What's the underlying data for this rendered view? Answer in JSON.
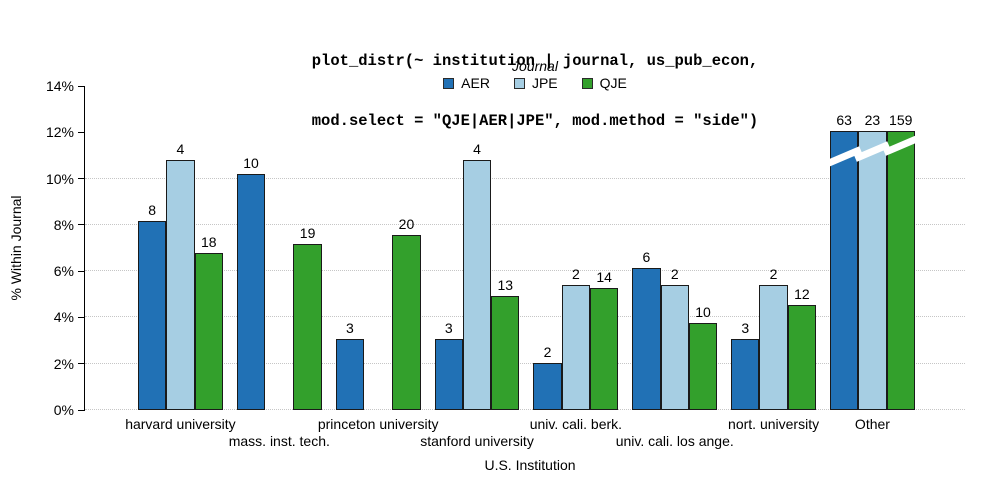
{
  "title": {
    "line1": "plot_distr(~ institution | journal, us_pub_econ,",
    "line2": "mod.select = \"QJE|AER|JPE\", mod.method = \"side\")"
  },
  "legend": {
    "title": "Journal",
    "entries": [
      {
        "label": "AER",
        "color": "#2171B5"
      },
      {
        "label": "JPE",
        "color": "#A6CEE3"
      },
      {
        "label": "QJE",
        "color": "#33A02C"
      }
    ]
  },
  "axes": {
    "y_label": "% Within Journal",
    "x_label": "U.S. Institution",
    "y_tick_labels": [
      "0%",
      "2%",
      "4%",
      "6%",
      "8%",
      "10%",
      "12%",
      "14%"
    ]
  },
  "chart_data": {
    "type": "bar",
    "title": "plot_distr(~ institution | journal, us_pub_econ, mod.select = \"QJE|AER|JPE\", mod.method = \"side\")",
    "xlabel": "U.S. Institution",
    "ylabel": "% Within Journal",
    "ylim": [
      0,
      14
    ],
    "y_ticks_pct": [
      0,
      2,
      4,
      6,
      8,
      10,
      12,
      14
    ],
    "gridlines_pct": [
      0,
      2,
      4,
      6,
      8,
      10
    ],
    "grid_style": "dotted horizontal",
    "legend_position": "top center",
    "categories": [
      "harvard university",
      "mass. inst. tech.",
      "princeton university",
      "stanford university",
      "univ. cali. berk.",
      "univ. cali. los ange.",
      "nort. university",
      "Other"
    ],
    "label_rows": [
      1,
      2,
      1,
      2,
      1,
      2,
      1,
      1
    ],
    "series": [
      {
        "name": "AER",
        "color": "#2171B5",
        "counts": [
          8,
          10,
          3,
          3,
          2,
          6,
          3,
          63
        ],
        "pct": [
          8.16,
          10.2,
          3.06,
          3.06,
          2.04,
          6.12,
          3.06,
          12.05
        ]
      },
      {
        "name": "JPE",
        "color": "#A6CEE3",
        "counts": [
          4,
          null,
          null,
          4,
          2,
          2,
          2,
          23
        ],
        "pct": [
          10.81,
          null,
          null,
          10.81,
          5.41,
          5.41,
          5.41,
          12.05
        ]
      },
      {
        "name": "QJE",
        "color": "#33A02C",
        "counts": [
          18,
          19,
          20,
          13,
          14,
          10,
          12,
          159
        ],
        "pct": [
          6.79,
          7.17,
          7.55,
          4.91,
          5.28,
          3.77,
          4.53,
          12.05
        ]
      }
    ],
    "truncated_groups": [
      false,
      false,
      false,
      false,
      false,
      false,
      false,
      true
    ],
    "truncation_note": "Bars of the 'Other' group are cut at ~12% with white diagonal break marks; labels show true counts 63 / 23 / 159."
  }
}
